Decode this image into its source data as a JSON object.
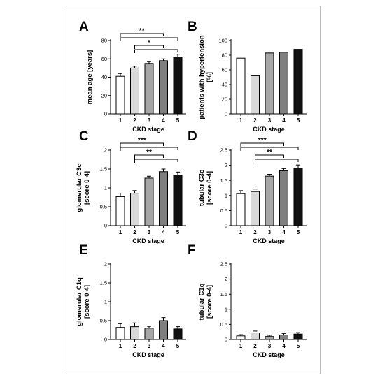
{
  "colors": {
    "stage1": "#ffffff",
    "stage2": "#d9d9d9",
    "stage3": "#a6a6a6",
    "stage4": "#7f7f7f",
    "stage5": "#111111",
    "frame": "#b8b8b8"
  },
  "chart_data": [
    {
      "panel": "A",
      "type": "bar",
      "ylabel": "mean age [years]",
      "xlabel": "CKD stage",
      "categories": [
        "1",
        "2",
        "3",
        "4",
        "5"
      ],
      "values": [
        41,
        50,
        55,
        58,
        62
      ],
      "errors": [
        3,
        2,
        2,
        2,
        3
      ],
      "ylim": [
        0,
        80
      ],
      "yticks": [
        0,
        20,
        40,
        60,
        80
      ],
      "significance": [
        {
          "from": 1,
          "to": 4,
          "label": "**"
        },
        {
          "from": 1,
          "to": 5,
          "label": ""
        },
        {
          "from": 2,
          "to": 4,
          "label": "*"
        },
        {
          "from": 2,
          "to": 5,
          "label": ""
        }
      ]
    },
    {
      "panel": "B",
      "type": "bar",
      "ylabel": "patients with hypertension [%]",
      "xlabel": "CKD stage",
      "categories": [
        "1",
        "2",
        "3",
        "4",
        "5"
      ],
      "values": [
        76,
        52,
        83,
        84,
        88
      ],
      "errors": [],
      "ylim": [
        0,
        100
      ],
      "yticks": [
        0,
        20,
        40,
        60,
        80,
        100
      ],
      "significance": []
    },
    {
      "panel": "C",
      "type": "bar",
      "ylabel": "glomerular C3c [score 0-4]",
      "xlabel": "CKD stage",
      "categories": [
        "1",
        "2",
        "3",
        "4",
        "5"
      ],
      "values": [
        0.77,
        0.86,
        1.26,
        1.43,
        1.34
      ],
      "errors": [
        0.09,
        0.07,
        0.05,
        0.07,
        0.08
      ],
      "ylim": [
        0,
        2.0
      ],
      "yticks": [
        0,
        0.5,
        1.0,
        1.5,
        2.0
      ],
      "significance": [
        {
          "from": 1,
          "to": 4,
          "label": "***"
        },
        {
          "from": 1,
          "to": 5,
          "label": ""
        },
        {
          "from": 2,
          "to": 4,
          "label": "**"
        },
        {
          "from": 2,
          "to": 5,
          "label": ""
        }
      ]
    },
    {
      "panel": "D",
      "type": "bar",
      "ylabel": "tubular C3c [score 0-4]",
      "xlabel": "CKD stage",
      "categories": [
        "1",
        "2",
        "3",
        "4",
        "5"
      ],
      "values": [
        1.06,
        1.13,
        1.64,
        1.82,
        1.91
      ],
      "errors": [
        0.1,
        0.08,
        0.06,
        0.07,
        0.1
      ],
      "ylim": [
        0,
        2.5
      ],
      "yticks": [
        0,
        0.5,
        1.0,
        1.5,
        2.0,
        2.5
      ],
      "significance": [
        {
          "from": 1,
          "to": 4,
          "label": "***"
        },
        {
          "from": 1,
          "to": 5,
          "label": ""
        },
        {
          "from": 2,
          "to": 4,
          "label": "**"
        },
        {
          "from": 2,
          "to": 5,
          "label": ""
        }
      ]
    },
    {
      "panel": "E",
      "type": "bar",
      "ylabel": "glomerular C1q [score 0-4]",
      "xlabel": "CKD stage",
      "categories": [
        "1",
        "2",
        "3",
        "4",
        "5"
      ],
      "values": [
        0.32,
        0.34,
        0.3,
        0.5,
        0.28
      ],
      "errors": [
        0.1,
        0.1,
        0.05,
        0.08,
        0.06
      ],
      "ylim": [
        0,
        2.0
      ],
      "yticks": [
        0,
        0.5,
        1.0,
        1.5,
        2.0
      ],
      "significance": []
    },
    {
      "panel": "F",
      "type": "bar",
      "ylabel": "tubular C1q [score 0-4]",
      "xlabel": "CKD stage",
      "categories": [
        "1",
        "2",
        "3",
        "4",
        "5"
      ],
      "values": [
        0.12,
        0.22,
        0.1,
        0.15,
        0.18
      ],
      "errors": [
        0.04,
        0.06,
        0.04,
        0.05,
        0.05
      ],
      "ylim": [
        0,
        2.5
      ],
      "yticks": [
        0,
        0.5,
        1.0,
        1.5,
        2.0,
        2.5
      ],
      "significance": []
    }
  ]
}
